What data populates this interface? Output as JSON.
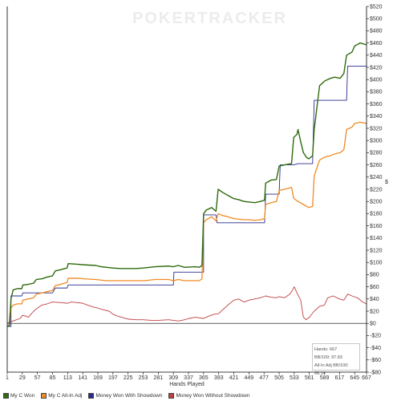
{
  "watermark": "POKERTRACKER",
  "chart_data": {
    "type": "line",
    "xlabel": "Hands Played",
    "ylabel": "$",
    "xlim": [
      1,
      667
    ],
    "ylim": [
      -80,
      520
    ],
    "x_ticks": [
      1,
      29,
      57,
      85,
      113,
      141,
      169,
      197,
      225,
      253,
      281,
      309,
      337,
      365,
      393,
      421,
      449,
      477,
      505,
      533,
      561,
      589,
      617,
      645,
      667
    ],
    "y_ticks": [
      -80,
      -60,
      -40,
      -20,
      0,
      20,
      40,
      60,
      80,
      100,
      120,
      140,
      160,
      180,
      200,
      220,
      240,
      260,
      280,
      300,
      320,
      340,
      360,
      380,
      400,
      420,
      440,
      460,
      480,
      500,
      520
    ],
    "grid": false,
    "legend_position": "bottom",
    "series": [
      {
        "name": "My C Won",
        "color": "#2e6b0d",
        "points": [
          [
            1,
            -5
          ],
          [
            5,
            -3
          ],
          [
            8,
            40
          ],
          [
            12,
            55
          ],
          [
            20,
            57
          ],
          [
            28,
            57
          ],
          [
            30,
            63
          ],
          [
            40,
            64
          ],
          [
            50,
            66
          ],
          [
            55,
            72
          ],
          [
            65,
            73
          ],
          [
            75,
            76
          ],
          [
            85,
            78
          ],
          [
            90,
            86
          ],
          [
            100,
            88
          ],
          [
            112,
            91
          ],
          [
            114,
            98
          ],
          [
            130,
            97
          ],
          [
            145,
            96
          ],
          [
            165,
            95
          ],
          [
            175,
            93
          ],
          [
            185,
            92
          ],
          [
            195,
            91
          ],
          [
            210,
            90
          ],
          [
            225,
            90
          ],
          [
            240,
            90
          ],
          [
            255,
            91
          ],
          [
            265,
            92
          ],
          [
            275,
            93
          ],
          [
            300,
            94
          ],
          [
            309,
            93
          ],
          [
            318,
            95
          ],
          [
            330,
            92
          ],
          [
            350,
            93
          ],
          [
            357,
            92
          ],
          [
            362,
            95
          ],
          [
            365,
            180
          ],
          [
            370,
            186
          ],
          [
            380,
            190
          ],
          [
            388,
            184
          ],
          [
            392,
            220
          ],
          [
            400,
            215
          ],
          [
            410,
            210
          ],
          [
            420,
            205
          ],
          [
            430,
            203
          ],
          [
            440,
            200
          ],
          [
            450,
            199
          ],
          [
            460,
            198
          ],
          [
            470,
            200
          ],
          [
            478,
            202
          ],
          [
            480,
            230
          ],
          [
            490,
            235
          ],
          [
            500,
            236
          ],
          [
            505,
            258
          ],
          [
            515,
            260
          ],
          [
            528,
            262
          ],
          [
            532,
            305
          ],
          [
            538,
            310
          ],
          [
            540,
            318
          ],
          [
            545,
            298
          ],
          [
            550,
            280
          ],
          [
            556,
            272
          ],
          [
            560,
            270
          ],
          [
            567,
            275
          ],
          [
            570,
            318
          ],
          [
            580,
            390
          ],
          [
            590,
            398
          ],
          [
            600,
            402
          ],
          [
            608,
            404
          ],
          [
            618,
            402
          ],
          [
            625,
            410
          ],
          [
            630,
            440
          ],
          [
            640,
            445
          ],
          [
            645,
            455
          ],
          [
            655,
            460
          ],
          [
            667,
            457
          ]
        ]
      },
      {
        "name": "My C All-In Adj",
        "color": "#f08a24",
        "points": [
          [
            1,
            -5
          ],
          [
            5,
            -3
          ],
          [
            8,
            25
          ],
          [
            12,
            30
          ],
          [
            20,
            32
          ],
          [
            28,
            32
          ],
          [
            30,
            38
          ],
          [
            40,
            40
          ],
          [
            50,
            42
          ],
          [
            55,
            48
          ],
          [
            65,
            50
          ],
          [
            75,
            52
          ],
          [
            85,
            54
          ],
          [
            90,
            62
          ],
          [
            100,
            64
          ],
          [
            112,
            67
          ],
          [
            114,
            74
          ],
          [
            130,
            74
          ],
          [
            145,
            73
          ],
          [
            165,
            72
          ],
          [
            175,
            71
          ],
          [
            185,
            70
          ],
          [
            195,
            70
          ],
          [
            210,
            70
          ],
          [
            225,
            70
          ],
          [
            240,
            70
          ],
          [
            255,
            70
          ],
          [
            265,
            71
          ],
          [
            275,
            72
          ],
          [
            300,
            72
          ],
          [
            309,
            70
          ],
          [
            318,
            72
          ],
          [
            330,
            70
          ],
          [
            350,
            70
          ],
          [
            357,
            70
          ],
          [
            362,
            73
          ],
          [
            365,
            165
          ],
          [
            370,
            170
          ],
          [
            380,
            175
          ],
          [
            388,
            168
          ],
          [
            392,
            180
          ],
          [
            400,
            177
          ],
          [
            410,
            175
          ],
          [
            420,
            172
          ],
          [
            430,
            171
          ],
          [
            440,
            170
          ],
          [
            450,
            170
          ],
          [
            460,
            169
          ],
          [
            470,
            170
          ],
          [
            478,
            172
          ],
          [
            480,
            195
          ],
          [
            490,
            198
          ],
          [
            500,
            200
          ],
          [
            505,
            218
          ],
          [
            515,
            220
          ],
          [
            528,
            223
          ],
          [
            532,
            205
          ],
          [
            540,
            200
          ],
          [
            550,
            195
          ],
          [
            556,
            192
          ],
          [
            560,
            190
          ],
          [
            567,
            192
          ],
          [
            570,
            242
          ],
          [
            580,
            268
          ],
          [
            590,
            273
          ],
          [
            600,
            275
          ],
          [
            608,
            278
          ],
          [
            618,
            280
          ],
          [
            625,
            285
          ],
          [
            630,
            318
          ],
          [
            640,
            322
          ],
          [
            645,
            328
          ],
          [
            655,
            330
          ],
          [
            667,
            328
          ]
        ]
      },
      {
        "name": "Money Won With Showdown",
        "color": "#2b2b8f",
        "points": [
          [
            1,
            -5
          ],
          [
            8,
            -5
          ],
          [
            8,
            45
          ],
          [
            28,
            45
          ],
          [
            30,
            50
          ],
          [
            85,
            50
          ],
          [
            90,
            58
          ],
          [
            112,
            58
          ],
          [
            114,
            63
          ],
          [
            309,
            63
          ],
          [
            310,
            84
          ],
          [
            365,
            84
          ],
          [
            365,
            178
          ],
          [
            388,
            178
          ],
          [
            390,
            165
          ],
          [
            478,
            165
          ],
          [
            480,
            212
          ],
          [
            505,
            212
          ],
          [
            507,
            260
          ],
          [
            532,
            260
          ],
          [
            540,
            262
          ],
          [
            567,
            262
          ],
          [
            570,
            366
          ],
          [
            630,
            366
          ],
          [
            632,
            422
          ],
          [
            667,
            422
          ]
        ]
      },
      {
        "name": "Money Won Without Showdown",
        "color": "#c04040",
        "points": [
          [
            1,
            0
          ],
          [
            5,
            2
          ],
          [
            15,
            5
          ],
          [
            25,
            8
          ],
          [
            29,
            13
          ],
          [
            35,
            12
          ],
          [
            40,
            10
          ],
          [
            50,
            20
          ],
          [
            57,
            25
          ],
          [
            65,
            30
          ],
          [
            75,
            32
          ],
          [
            85,
            35
          ],
          [
            100,
            34
          ],
          [
            113,
            33
          ],
          [
            120,
            35
          ],
          [
            130,
            34
          ],
          [
            141,
            33
          ],
          [
            150,
            30
          ],
          [
            160,
            27
          ],
          [
            169,
            25
          ],
          [
            180,
            22
          ],
          [
            190,
            20
          ],
          [
            197,
            15
          ],
          [
            205,
            12
          ],
          [
            213,
            10
          ],
          [
            225,
            7
          ],
          [
            240,
            6
          ],
          [
            253,
            6
          ],
          [
            268,
            5
          ],
          [
            281,
            5
          ],
          [
            300,
            6
          ],
          [
            309,
            5
          ],
          [
            318,
            4
          ],
          [
            330,
            6
          ],
          [
            337,
            8
          ],
          [
            350,
            10
          ],
          [
            365,
            8
          ],
          [
            375,
            12
          ],
          [
            385,
            15
          ],
          [
            393,
            16
          ],
          [
            400,
            22
          ],
          [
            410,
            30
          ],
          [
            421,
            38
          ],
          [
            430,
            40
          ],
          [
            440,
            35
          ],
          [
            449,
            38
          ],
          [
            460,
            40
          ],
          [
            470,
            42
          ],
          [
            480,
            45
          ],
          [
            490,
            43
          ],
          [
            500,
            42
          ],
          [
            505,
            44
          ],
          [
            515,
            42
          ],
          [
            525,
            48
          ],
          [
            530,
            55
          ],
          [
            533,
            60
          ],
          [
            538,
            50
          ],
          [
            545,
            38
          ],
          [
            550,
            10
          ],
          [
            555,
            6
          ],
          [
            561,
            10
          ],
          [
            570,
            20
          ],
          [
            580,
            28
          ],
          [
            589,
            30
          ],
          [
            595,
            42
          ],
          [
            605,
            45
          ],
          [
            617,
            40
          ],
          [
            625,
            38
          ],
          [
            632,
            48
          ],
          [
            640,
            45
          ],
          [
            650,
            42
          ],
          [
            660,
            35
          ],
          [
            667,
            32
          ]
        ]
      }
    ]
  },
  "stats": {
    "hands": "Hands: 667",
    "bb100": "BB/100: 97.83",
    "allin_bb100": "All-In Adj BB/100: 66.14"
  }
}
